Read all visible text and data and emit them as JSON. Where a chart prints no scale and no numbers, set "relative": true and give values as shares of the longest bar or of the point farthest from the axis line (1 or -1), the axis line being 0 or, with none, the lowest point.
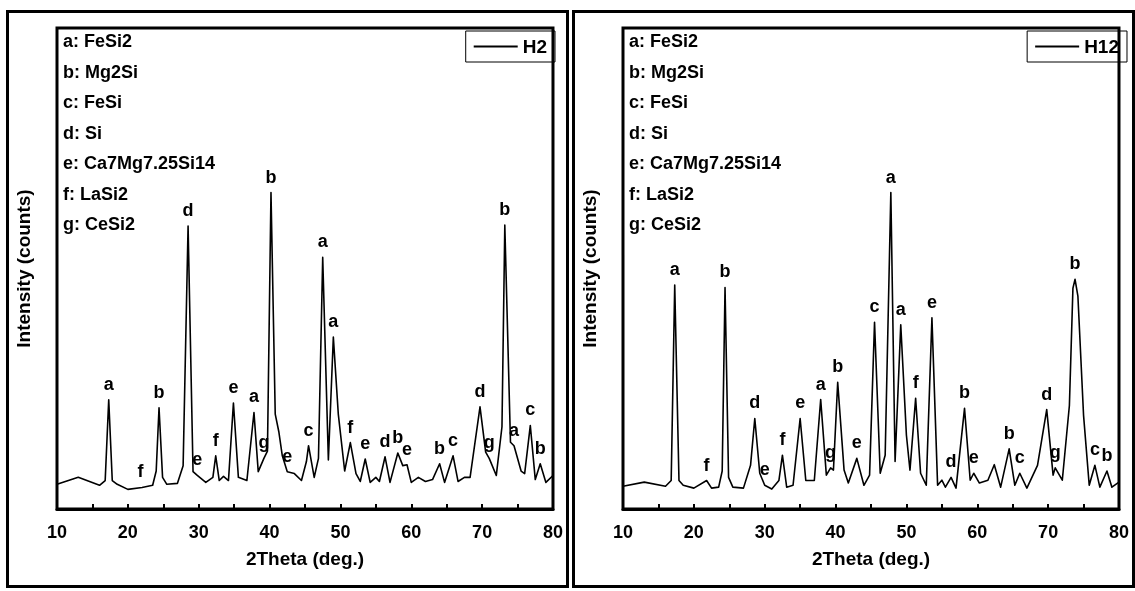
{
  "chart_data": [
    {
      "type": "line",
      "xlabel": "2Theta (deg.)",
      "ylabel": "Intensity (counts)",
      "relative": true,
      "legend": "top right",
      "marker": "none",
      "xlim": [
        10,
        80
      ],
      "xticks": [
        10,
        {
          "value": 15,
          "label": null
        },
        20,
        {
          "value": 25,
          "label": null
        },
        30,
        {
          "value": 35,
          "label": null
        },
        40,
        {
          "value": 45,
          "label": null
        },
        50,
        {
          "value": 55,
          "label": null
        },
        60,
        {
          "value": 65,
          "label": null
        },
        70,
        {
          "value": 75,
          "label": null
        },
        80
      ],
      "series": [
        {
          "name": "H2",
          "color": "#000000",
          "x": [
            10,
            13,
            16,
            16.8,
            17.3,
            17.8,
            18.5,
            20,
            22,
            23.5,
            24,
            24.4,
            24.9,
            25.5,
            27,
            27.8,
            28.5,
            29.2,
            29.8,
            31,
            32,
            32.4,
            32.9,
            33.5,
            34.2,
            34.9,
            35.6,
            36.8,
            37.8,
            38.4,
            39.2,
            39.7,
            40.2,
            40.8,
            41.3,
            41.8,
            42.5,
            43.5,
            44.5,
            45.2,
            45.5,
            46.3,
            46.9,
            47.5,
            48.3,
            49,
            49.7,
            50.6,
            51.4,
            52.2,
            52.8,
            53.5,
            54.2,
            55,
            55.5,
            56.3,
            57,
            58.1,
            58.8,
            59.4,
            60,
            61,
            62,
            63,
            64,
            64.7,
            65.9,
            66.6,
            67.5,
            68.3,
            69.7,
            70.5,
            71,
            72,
            72.8,
            73.2,
            74,
            74.5,
            75.5,
            76,
            76.8,
            77.5,
            78.2,
            79,
            80
          ],
          "values": [
            0.078,
            0.1,
            0.075,
            0.09,
            0.345,
            0.09,
            0.078,
            0.062,
            0.068,
            0.075,
            0.12,
            0.32,
            0.1,
            0.078,
            0.081,
            0.137,
            0.894,
            0.118,
            0.106,
            0.084,
            0.1,
            0.168,
            0.09,
            0.103,
            0.09,
            0.335,
            0.1,
            0.09,
            0.305,
            0.118,
            0.16,
            0.183,
            1.0,
            0.3,
            0.245,
            0.168,
            0.118,
            0.112,
            0.09,
            0.15,
            0.2,
            0.1,
            0.16,
            0.795,
            0.155,
            0.543,
            0.3,
            0.12,
            0.21,
            0.112,
            0.087,
            0.158,
            0.084,
            0.1,
            0.087,
            0.165,
            0.084,
            0.177,
            0.137,
            0.14,
            0.084,
            0.1,
            0.087,
            0.093,
            0.143,
            0.084,
            0.168,
            0.087,
            0.1,
            0.1,
            0.323,
            0.18,
            0.16,
            0.106,
            0.26,
            0.897,
            0.211,
            0.2,
            0.12,
            0.112,
            0.264,
            0.093,
            0.143,
            0.084,
            0.106
          ]
        }
      ],
      "annotations": [
        "a: FeSi2",
        "b: Mg2Si",
        "c: FeSi",
        "d: Si",
        "e: Ca7Mg7.25Si14",
        "f: LaSi2",
        "g: CeSi2",
        {
          "text": "a",
          "x": 17.3,
          "y": 0.345
        },
        {
          "text": "f",
          "x": 21.8,
          "y": 0.068
        },
        {
          "text": "b",
          "x": 24.4,
          "y": 0.32
        },
        {
          "text": "d",
          "x": 28.5,
          "y": 0.894
        },
        {
          "text": "e",
          "x": 29.8,
          "y": 0.106
        },
        {
          "text": "f",
          "x": 32.4,
          "y": 0.168
        },
        {
          "text": "e",
          "x": 34.9,
          "y": 0.335
        },
        {
          "text": "a",
          "x": 37.8,
          "y": 0.305
        },
        {
          "text": "g",
          "x": 39.2,
          "y": 0.16
        },
        {
          "text": "b",
          "x": 40.2,
          "y": 1.0
        },
        {
          "text": "e",
          "x": 42.5,
          "y": 0.118
        },
        {
          "text": "c",
          "x": 45.5,
          "y": 0.2
        },
        {
          "text": "a",
          "x": 47.5,
          "y": 0.795
        },
        {
          "text": "a",
          "x": 49,
          "y": 0.543
        },
        {
          "text": "f",
          "x": 51.4,
          "y": 0.21
        },
        {
          "text": "e",
          "x": 53.5,
          "y": 0.158
        },
        {
          "text": "d",
          "x": 56.3,
          "y": 0.165
        },
        {
          "text": "b",
          "x": 58.1,
          "y": 0.177
        },
        {
          "text": "e",
          "x": 59.4,
          "y": 0.14
        },
        {
          "text": "b",
          "x": 64,
          "y": 0.143
        },
        {
          "text": "c",
          "x": 65.9,
          "y": 0.168
        },
        {
          "text": "d",
          "x": 69.7,
          "y": 0.323
        },
        {
          "text": "g",
          "x": 71,
          "y": 0.16
        },
        {
          "text": "b",
          "x": 73.2,
          "y": 0.897
        },
        {
          "text": "a",
          "x": 74.5,
          "y": 0.2
        },
        {
          "text": "c",
          "x": 76.8,
          "y": 0.264
        },
        {
          "text": "b",
          "x": 78.2,
          "y": 0.143
        }
      ]
    },
    {
      "type": "line",
      "xlabel": "2Theta (deg.)",
      "ylabel": "Intensity (counts)",
      "relative": true,
      "legend": "top right",
      "marker": "none",
      "xlim": [
        10,
        80
      ],
      "xticks": [
        10,
        {
          "value": 15,
          "label": null
        },
        20,
        {
          "value": 25,
          "label": null
        },
        30,
        {
          "value": 35,
          "label": null
        },
        40,
        {
          "value": 45,
          "label": null
        },
        50,
        {
          "value": 55,
          "label": null
        },
        60,
        {
          "value": 65,
          "label": null
        },
        70,
        {
          "value": 75,
          "label": null
        },
        80
      ],
      "series": [
        {
          "name": "H12",
          "color": "#000000",
          "x": [
            10,
            13,
            16,
            16.8,
            17.3,
            17.9,
            18.5,
            20,
            21.8,
            22.5,
            23.5,
            24,
            24.4,
            24.9,
            25.5,
            27,
            28,
            28.6,
            29.3,
            30,
            31,
            32,
            32.5,
            33.1,
            34,
            35,
            35.8,
            37,
            37.9,
            38.7,
            39.3,
            39.7,
            40.3,
            41.2,
            41.8,
            43,
            44,
            44.8,
            45.5,
            46.3,
            47,
            47.8,
            48.4,
            49.2,
            50,
            50.5,
            51.3,
            52,
            52.8,
            53.6,
            54.4,
            55,
            55.5,
            56.3,
            57,
            58.2,
            59,
            59.5,
            60.3,
            61.5,
            62.4,
            63.3,
            64.5,
            65.3,
            66,
            67,
            68.5,
            69.8,
            70.7,
            71,
            72,
            73,
            73.5,
            73.8,
            74.2,
            75,
            75.8,
            76.6,
            77.3,
            78.3,
            79,
            80
          ],
          "values": [
            0.072,
            0.085,
            0.072,
            0.09,
            0.708,
            0.09,
            0.075,
            0.066,
            0.09,
            0.066,
            0.069,
            0.12,
            0.7,
            0.1,
            0.069,
            0.066,
            0.138,
            0.286,
            0.113,
            0.075,
            0.063,
            0.09,
            0.17,
            0.069,
            0.075,
            0.286,
            0.09,
            0.09,
            0.346,
            0.107,
            0.13,
            0.123,
            0.4,
            0.123,
            0.082,
            0.16,
            0.075,
            0.107,
            0.59,
            0.113,
            0.17,
            1.0,
            0.15,
            0.582,
            0.233,
            0.123,
            0.35,
            0.113,
            0.075,
            0.604,
            0.075,
            0.091,
            0.069,
            0.1,
            0.066,
            0.318,
            0.091,
            0.113,
            0.082,
            0.091,
            0.14,
            0.069,
            0.19,
            0.075,
            0.113,
            0.066,
            0.138,
            0.314,
            0.107,
            0.13,
            0.091,
            0.327,
            0.698,
            0.726,
            0.673,
            0.296,
            0.075,
            0.138,
            0.069,
            0.12,
            0.069,
            0.085
          ]
        }
      ],
      "annotations": [
        "a: FeSi2",
        "b: Mg2Si",
        "c: FeSi",
        "d: Si",
        "e: Ca7Mg7.25Si14",
        "f: LaSi2",
        "g: CeSi2",
        {
          "text": "a",
          "x": 17.3,
          "y": 0.708
        },
        {
          "text": "f",
          "x": 21.8,
          "y": 0.09
        },
        {
          "text": "b",
          "x": 24.4,
          "y": 0.7
        },
        {
          "text": "d",
          "x": 28.6,
          "y": 0.286
        },
        {
          "text": "e",
          "x": 30,
          "y": 0.075
        },
        {
          "text": "f",
          "x": 32.5,
          "y": 0.17
        },
        {
          "text": "e",
          "x": 35,
          "y": 0.286
        },
        {
          "text": "a",
          "x": 37.9,
          "y": 0.346
        },
        {
          "text": "g",
          "x": 39.3,
          "y": 0.13
        },
        {
          "text": "b",
          "x": 40.3,
          "y": 0.4
        },
        {
          "text": "e",
          "x": 43,
          "y": 0.16
        },
        {
          "text": "c",
          "x": 45.5,
          "y": 0.59
        },
        {
          "text": "a",
          "x": 47.8,
          "y": 1.0
        },
        {
          "text": "a",
          "x": 49.2,
          "y": 0.582
        },
        {
          "text": "f",
          "x": 51.3,
          "y": 0.35
        },
        {
          "text": "e",
          "x": 53.6,
          "y": 0.604
        },
        {
          "text": "d",
          "x": 56.3,
          "y": 0.1
        },
        {
          "text": "b",
          "x": 58.2,
          "y": 0.318
        },
        {
          "text": "e",
          "x": 59.5,
          "y": 0.113
        },
        {
          "text": "b",
          "x": 64.5,
          "y": 0.19
        },
        {
          "text": "c",
          "x": 66,
          "y": 0.113
        },
        {
          "text": "d",
          "x": 69.8,
          "y": 0.314
        },
        {
          "text": "g",
          "x": 71,
          "y": 0.13
        },
        {
          "text": "b",
          "x": 73.8,
          "y": 0.726
        },
        {
          "text": "c",
          "x": 76.6,
          "y": 0.138
        },
        {
          "text": "b",
          "x": 78.3,
          "y": 0.12
        }
      ]
    }
  ]
}
